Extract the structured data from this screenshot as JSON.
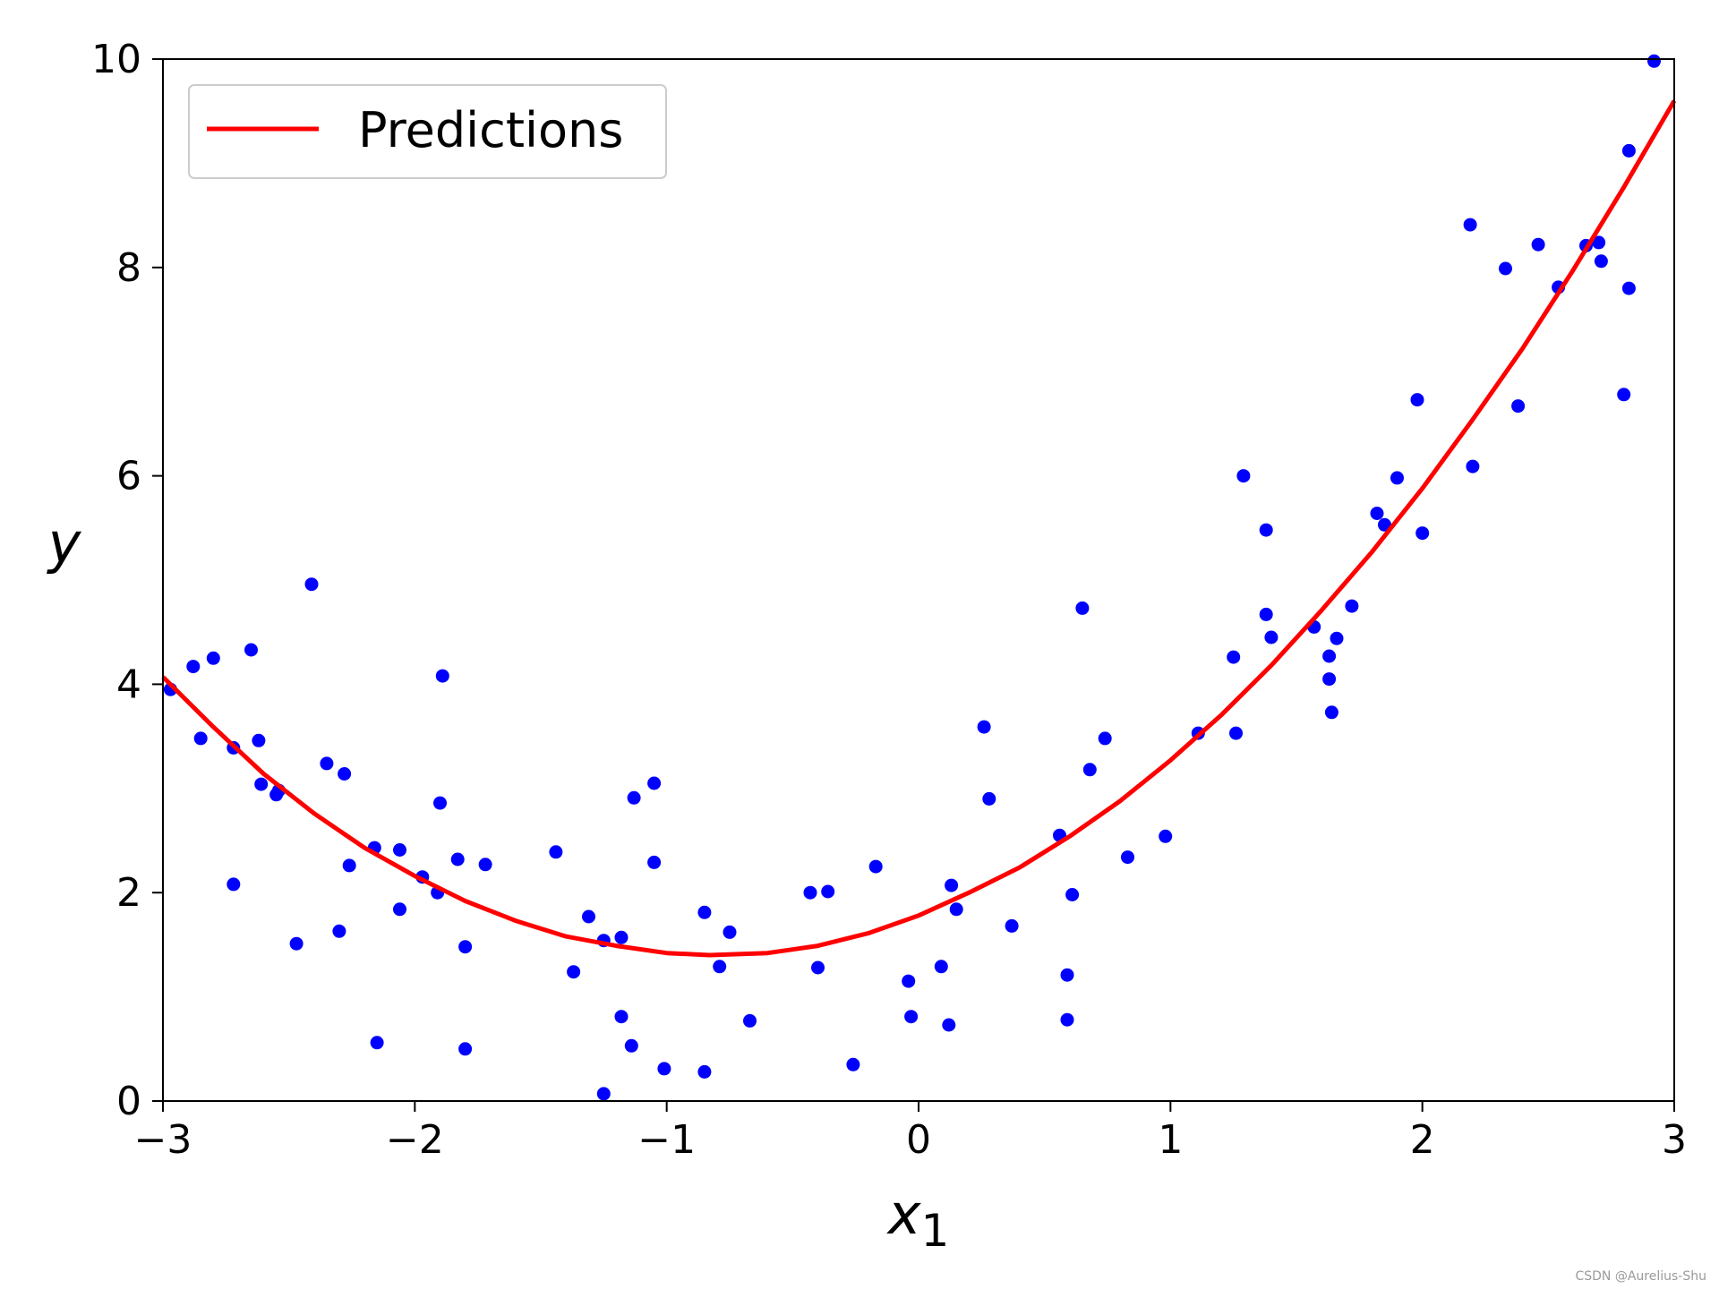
{
  "watermark": "CSDN @Aurelius-Shu",
  "colors": {
    "points": "#0000ff",
    "prediction_line": "#ff0000",
    "axes": "#000000",
    "legend_border": "#cccccc"
  },
  "chart_data": {
    "type": "scatter",
    "title": "",
    "xlabel": "x",
    "xlabel_subscript": "1",
    "ylabel": "y",
    "xlim": [
      -3,
      3
    ],
    "ylim": [
      0,
      10
    ],
    "xticks": [
      {
        "value": -3,
        "label": "−3"
      },
      {
        "value": -2,
        "label": "−2"
      },
      {
        "value": -1,
        "label": "−1"
      },
      {
        "value": 0,
        "label": "0"
      },
      {
        "value": 1,
        "label": "1"
      },
      {
        "value": 2,
        "label": "2"
      },
      {
        "value": 3,
        "label": "3"
      }
    ],
    "yticks": [
      {
        "value": 0,
        "label": "0"
      },
      {
        "value": 2,
        "label": "2"
      },
      {
        "value": 4,
        "label": "4"
      },
      {
        "value": 6,
        "label": "6"
      },
      {
        "value": 8,
        "label": "8"
      },
      {
        "value": 10,
        "label": "10"
      }
    ],
    "grid": false,
    "legend": {
      "placement": "top-left",
      "entries": [
        {
          "label": "Predictions",
          "kind": "line"
        }
      ]
    },
    "series": [
      {
        "kind": "points",
        "points": [
          [
            -2.97,
            3.95
          ],
          [
            -2.88,
            4.17
          ],
          [
            -2.85,
            3.48
          ],
          [
            -2.8,
            4.25
          ],
          [
            -2.72,
            2.08
          ],
          [
            -2.72,
            3.39
          ],
          [
            -2.65,
            4.33
          ],
          [
            -2.62,
            3.46
          ],
          [
            -2.61,
            3.04
          ],
          [
            -2.55,
            2.94
          ],
          [
            -2.54,
            2.98
          ],
          [
            -2.47,
            1.51
          ],
          [
            -2.41,
            4.96
          ],
          [
            -2.35,
            3.24
          ],
          [
            -2.3,
            1.63
          ],
          [
            -2.28,
            3.14
          ],
          [
            -2.26,
            2.26
          ],
          [
            -2.16,
            2.43
          ],
          [
            -2.15,
            0.56
          ],
          [
            -2.06,
            2.41
          ],
          [
            -2.06,
            1.84
          ],
          [
            -1.97,
            2.15
          ],
          [
            -1.91,
            2.0
          ],
          [
            -1.9,
            2.86
          ],
          [
            -1.89,
            4.08
          ],
          [
            -1.83,
            2.32
          ],
          [
            -1.8,
            1.48
          ],
          [
            -1.8,
            0.5
          ],
          [
            -1.72,
            2.27
          ],
          [
            -1.44,
            2.39
          ],
          [
            -1.37,
            1.24
          ],
          [
            -1.31,
            1.77
          ],
          [
            -1.25,
            1.54
          ],
          [
            -1.25,
            0.07
          ],
          [
            -1.18,
            1.57
          ],
          [
            -1.18,
            0.81
          ],
          [
            -1.14,
            0.53
          ],
          [
            -1.13,
            2.91
          ],
          [
            -1.05,
            3.05
          ],
          [
            -1.05,
            2.29
          ],
          [
            -1.01,
            0.31
          ],
          [
            -0.85,
            1.81
          ],
          [
            -0.85,
            0.28
          ],
          [
            -0.79,
            1.29
          ],
          [
            -0.75,
            1.62
          ],
          [
            -0.67,
            0.77
          ],
          [
            -0.43,
            2.0
          ],
          [
            -0.4,
            1.28
          ],
          [
            -0.36,
            2.01
          ],
          [
            -0.26,
            0.35
          ],
          [
            -0.17,
            2.25
          ],
          [
            -0.04,
            1.15
          ],
          [
            -0.03,
            0.81
          ],
          [
            0.09,
            1.29
          ],
          [
            0.12,
            0.73
          ],
          [
            0.13,
            2.07
          ],
          [
            0.15,
            1.84
          ],
          [
            0.26,
            3.59
          ],
          [
            0.28,
            2.9
          ],
          [
            0.37,
            1.68
          ],
          [
            0.56,
            2.55
          ],
          [
            0.59,
            1.21
          ],
          [
            0.59,
            0.78
          ],
          [
            0.61,
            1.98
          ],
          [
            0.65,
            4.73
          ],
          [
            0.68,
            3.18
          ],
          [
            0.74,
            3.48
          ],
          [
            0.83,
            2.34
          ],
          [
            0.98,
            2.54
          ],
          [
            1.11,
            3.53
          ],
          [
            1.25,
            4.26
          ],
          [
            1.26,
            3.53
          ],
          [
            1.29,
            6.0
          ],
          [
            1.38,
            5.48
          ],
          [
            1.38,
            4.67
          ],
          [
            1.4,
            4.45
          ],
          [
            1.57,
            4.55
          ],
          [
            1.63,
            4.27
          ],
          [
            1.63,
            4.05
          ],
          [
            1.64,
            3.73
          ],
          [
            1.66,
            4.44
          ],
          [
            1.72,
            4.75
          ],
          [
            1.82,
            5.64
          ],
          [
            1.85,
            5.53
          ],
          [
            1.9,
            5.98
          ],
          [
            1.98,
            6.73
          ],
          [
            2.0,
            5.45
          ],
          [
            2.19,
            8.41
          ],
          [
            2.2,
            6.09
          ],
          [
            2.33,
            7.99
          ],
          [
            2.38,
            6.67
          ],
          [
            2.46,
            8.22
          ],
          [
            2.54,
            7.81
          ],
          [
            2.65,
            8.21
          ],
          [
            2.7,
            8.24
          ],
          [
            2.71,
            8.06
          ],
          [
            2.8,
            6.78
          ],
          [
            2.82,
            9.12
          ],
          [
            2.82,
            7.8
          ],
          [
            2.92,
            9.98
          ]
        ]
      },
      {
        "kind": "curve",
        "name": "Predictions",
        "equation": "y = 0.56*x^2 + 0.93*x + 1.78",
        "x": [
          -3.0,
          -2.8,
          -2.6,
          -2.4,
          -2.2,
          -2.0,
          -1.8,
          -1.6,
          -1.4,
          -1.2,
          -1.0,
          -0.83,
          -0.6,
          -0.4,
          -0.2,
          0.0,
          0.2,
          0.4,
          0.6,
          0.8,
          1.0,
          1.2,
          1.4,
          1.6,
          1.8,
          2.0,
          2.2,
          2.4,
          2.6,
          2.8,
          3.0
        ],
        "y": [
          4.07,
          3.59,
          3.14,
          2.76,
          2.43,
          2.16,
          1.92,
          1.73,
          1.58,
          1.49,
          1.42,
          1.4,
          1.42,
          1.49,
          1.61,
          1.78,
          2.0,
          2.24,
          2.54,
          2.88,
          3.27,
          3.7,
          4.18,
          4.71,
          5.27,
          5.88,
          6.54,
          7.23,
          7.98,
          8.77,
          9.6
        ]
      }
    ]
  }
}
